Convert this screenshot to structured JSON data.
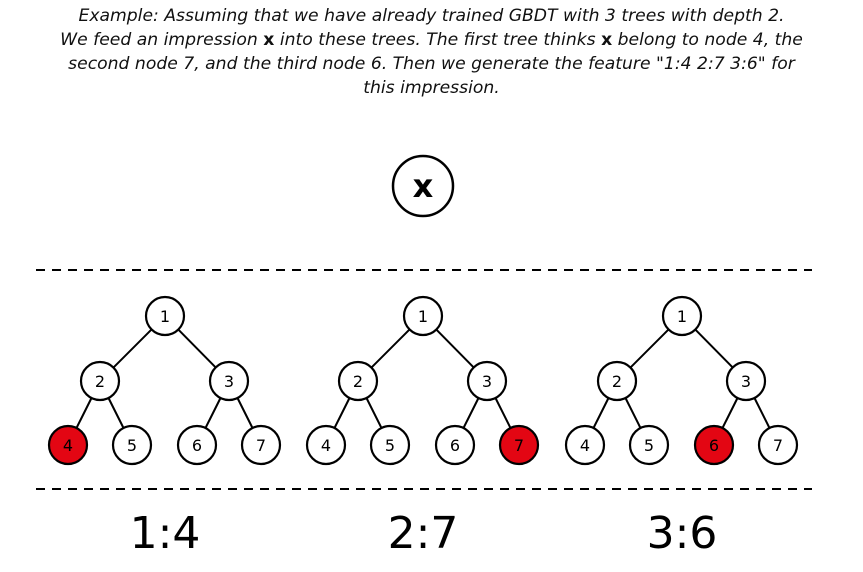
{
  "caption": {
    "l1": "Example: Assuming that we have already trained GBDT with 3 trees with depth 2.",
    "l2a": "We feed an impression ",
    "l2x": "x",
    "l2b": " into these trees. The first tree thinks ",
    "l2x2": "x",
    "l2c": " belong to node 4, the",
    "l3": "second node 7, and the third node 6. Then we generate the feature \"1:4 2:7 3:6\" for",
    "l4": "this impression."
  },
  "input_node_label": "x",
  "trees": [
    {
      "nodes": [
        "1",
        "2",
        "3",
        "4",
        "5",
        "6",
        "7"
      ],
      "highlighted": "4",
      "feature": "1:4"
    },
    {
      "nodes": [
        "1",
        "2",
        "3",
        "4",
        "5",
        "6",
        "7"
      ],
      "highlighted": "7",
      "feature": "2:7"
    },
    {
      "nodes": [
        "1",
        "2",
        "3",
        "4",
        "5",
        "6",
        "7"
      ],
      "highlighted": "6",
      "feature": "3:6"
    }
  ],
  "colors": {
    "highlight": "#e30613",
    "node_fill": "#ffffff",
    "stroke": "#000000"
  }
}
